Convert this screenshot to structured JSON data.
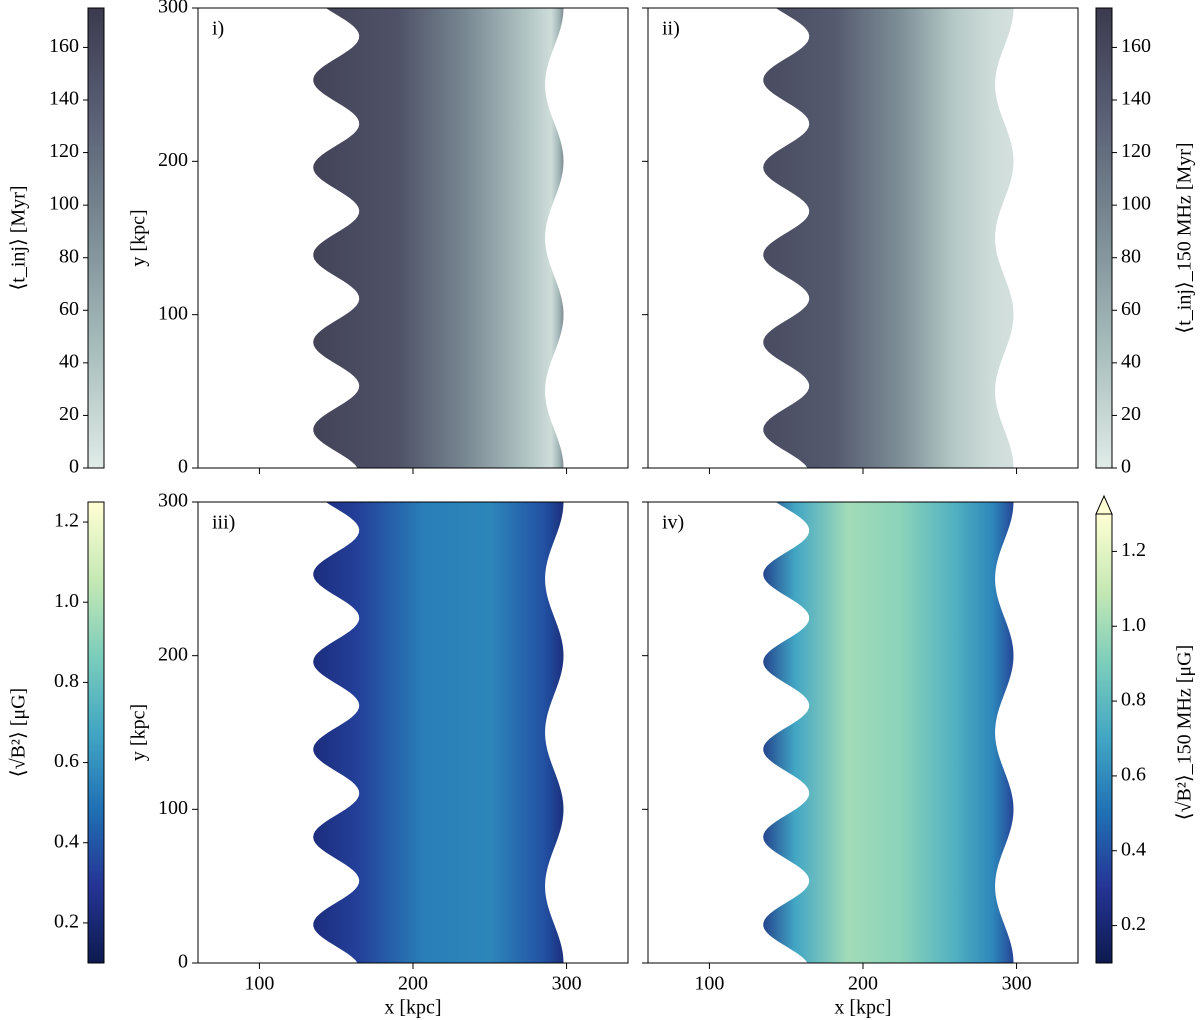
{
  "chart_data": [
    {
      "type": "heatmap",
      "label": "i)",
      "xlim": [
        60,
        340
      ],
      "ylim": [
        0,
        300
      ],
      "xticks": [
        100,
        200,
        300
      ],
      "yticks": [
        0,
        100,
        200,
        300
      ],
      "xticklabels": false,
      "yticklabels": true,
      "ylabel": "y [kpc]",
      "colorbar": {
        "label": "⟨t_inj⟩ [Myr]",
        "lim": [
          0,
          175
        ],
        "ticks": [
          0,
          20,
          40,
          60,
          80,
          100,
          120,
          140,
          160
        ],
        "side": "left",
        "cmap": [
          "#e1ebe8",
          "#a9bfbd",
          "#7e8f97",
          "#5c6277",
          "#3b3a4f"
        ]
      }
    },
    {
      "type": "heatmap",
      "label": "ii)",
      "xlim": [
        60,
        340
      ],
      "ylim": [
        0,
        300
      ],
      "xticks": [
        100,
        200,
        300
      ],
      "yticks": [
        0,
        100,
        200,
        300
      ],
      "xticklabels": false,
      "yticklabels": false,
      "colorbar": {
        "label": "⟨t_inj⟩_150 MHz [Myr]",
        "lim": [
          0,
          175
        ],
        "ticks": [
          0,
          20,
          40,
          60,
          80,
          100,
          120,
          140,
          160
        ],
        "side": "right",
        "cmap": [
          "#e1ebe8",
          "#a9bfbd",
          "#7e8f97",
          "#5c6277",
          "#3b3a4f"
        ]
      }
    },
    {
      "type": "heatmap",
      "label": "iii)",
      "xlim": [
        60,
        340
      ],
      "ylim": [
        0,
        300
      ],
      "xticks": [
        100,
        200,
        300
      ],
      "yticks": [
        0,
        100,
        200,
        300
      ],
      "xticklabels": true,
      "yticklabels": true,
      "xlabel": "x [kpc]",
      "ylabel": "y [kpc]",
      "colorbar": {
        "label": "⟨√B²⟩ [μG]",
        "lim": [
          0.1,
          1.25
        ],
        "ticks": [
          0.2,
          0.4,
          0.6,
          0.8,
          {
            "value": 1,
            "label": "1.0"
          },
          1.2
        ],
        "side": "left",
        "cmap": [
          "#0d1a4f",
          "#253494",
          "#2070b4",
          "#41a6c4",
          "#7ccdbb",
          "#c7e9b4",
          "#ffffd4"
        ]
      }
    },
    {
      "type": "heatmap",
      "label": "iv)",
      "xlim": [
        60,
        340
      ],
      "ylim": [
        0,
        300
      ],
      "xticks": [
        100,
        200,
        300
      ],
      "yticks": [
        0,
        100,
        200,
        300
      ],
      "xticklabels": true,
      "yticklabels": false,
      "xlabel": "x [kpc]",
      "colorbar": {
        "label": "⟨√B²⟩_150 MHz [μG]",
        "lim": [
          0.1,
          1.3
        ],
        "ticks": [
          0.2,
          0.4,
          0.6,
          0.8,
          {
            "value": 1,
            "label": "1.0"
          },
          1.2
        ],
        "side": "right",
        "extend": "max",
        "cmap": [
          "#0d1a4f",
          "#253494",
          "#2070b4",
          "#41a6c4",
          "#7ccdbb",
          "#c7e9b4",
          "#ffffd4"
        ]
      }
    }
  ]
}
